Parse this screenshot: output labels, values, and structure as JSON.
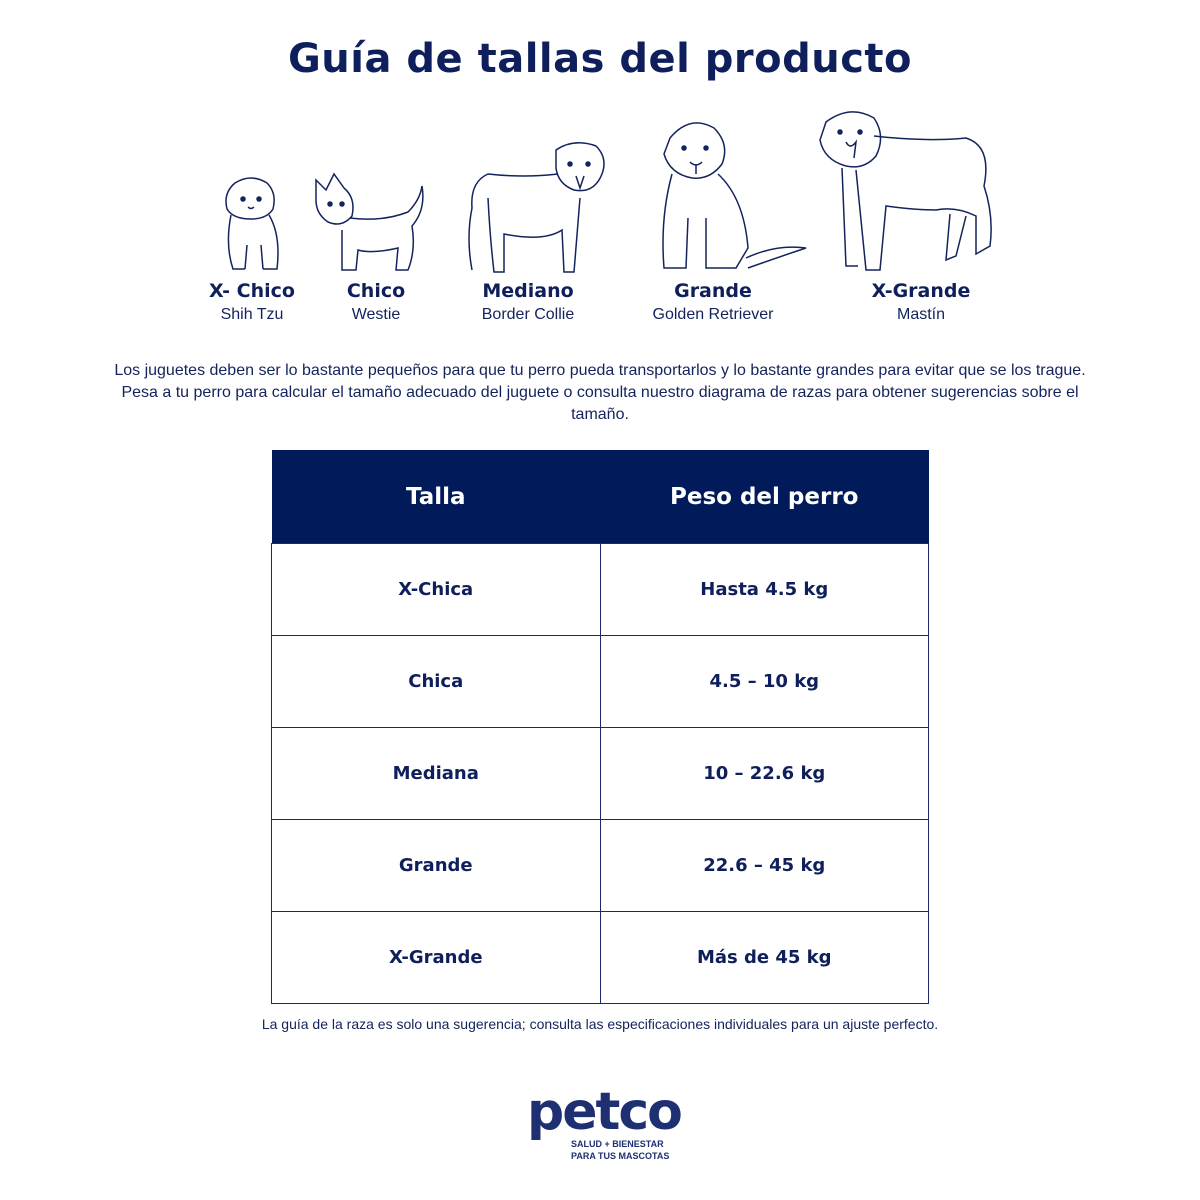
{
  "title": "Guía de tallas del producto",
  "dogs": [
    {
      "size": "X- Chico",
      "breed": "Shih Tzu",
      "icon": "shih-tzu-icon"
    },
    {
      "size": "Chico",
      "breed": "Westie",
      "icon": "westie-icon"
    },
    {
      "size": "Mediano",
      "breed": "Border Collie",
      "icon": "border-collie-icon"
    },
    {
      "size": "Grande",
      "breed": "Golden Retriever",
      "icon": "golden-retriever-icon"
    },
    {
      "size": "X-Grande",
      "breed": "Mastín",
      "icon": "mastiff-icon"
    }
  ],
  "description": "Los juguetes deben ser lo bastante pequeños para que tu perro pueda transportarlos y lo bastante grandes para evitar que se los trague. Pesa a tu perro para calcular el tamaño adecuado del juguete o consulta nuestro diagrama de razas para obtener sugerencias sobre el tamaño.",
  "table": {
    "headers": [
      "Talla",
      "Peso del perro"
    ],
    "rows": [
      [
        "X-Chica",
        "Hasta 4.5 kg"
      ],
      [
        "Chica",
        "4.5 – 10 kg"
      ],
      [
        "Mediana",
        "10 – 22.6 kg"
      ],
      [
        "Grande",
        "22.6 – 45 kg"
      ],
      [
        "X-Grande",
        "Más de 45 kg"
      ]
    ]
  },
  "note": "La guía de la raza es solo una sugerencia; consulta las especificaciones individuales para un ajuste perfecto.",
  "logo": {
    "brand": "petco",
    "tagline1": "SALUD + BIENESTAR",
    "tagline2": "PARA TUS MASCOTAS"
  },
  "colors": {
    "navy": "#001a5a",
    "text": "#13235c"
  }
}
